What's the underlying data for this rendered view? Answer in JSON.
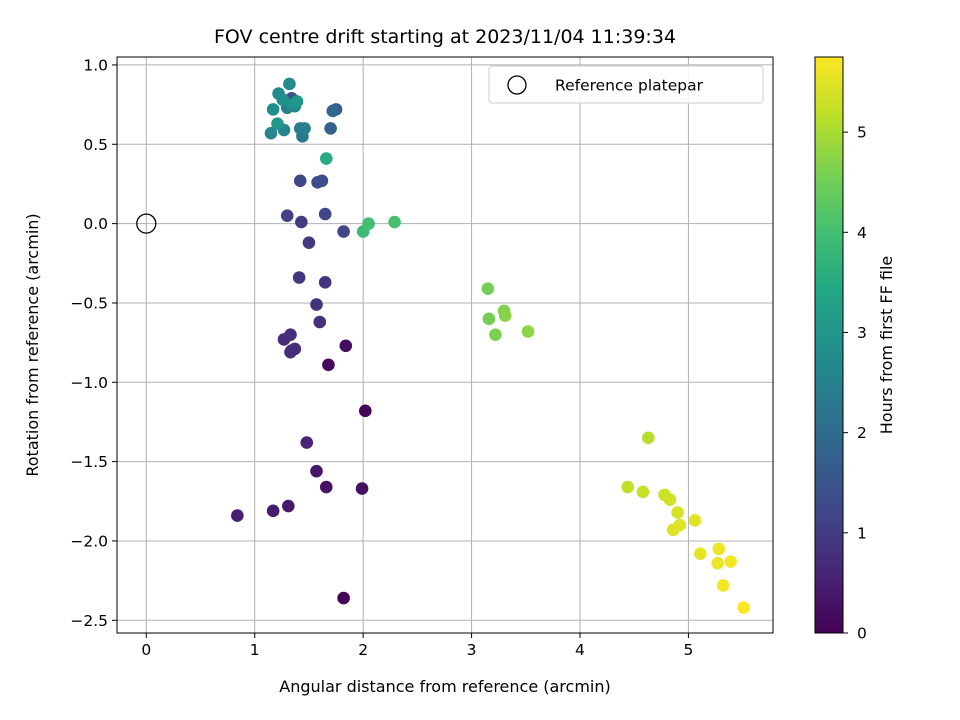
{
  "chart_data": {
    "type": "scatter",
    "title": "FOV centre drift starting at 2023/11/04 11:39:34",
    "xlabel": "Angular distance from reference (arcmin)",
    "ylabel": "Rotation from reference (arcmin)",
    "xlim": [
      -0.27,
      5.78
    ],
    "ylim": [
      -2.58,
      1.05
    ],
    "xticks": [
      0,
      1,
      2,
      3,
      4,
      5
    ],
    "yticks": [
      1.0,
      0.5,
      0.0,
      -0.5,
      -1.0,
      -1.5,
      -2.0,
      -2.5
    ],
    "xtick_labels": [
      "0",
      "1",
      "2",
      "3",
      "4",
      "5"
    ],
    "ytick_labels": [
      "1.0",
      "0.5",
      "0.0",
      "−0.5",
      "−1.0",
      "−1.5",
      "−2.0",
      "−2.5"
    ],
    "grid": true,
    "legend": {
      "placement": "top-right",
      "entries": [
        {
          "label": "Reference platepar",
          "marker": "open-circle"
        }
      ]
    },
    "reference_point": {
      "x": 0,
      "y": 0
    },
    "colorbar": {
      "label": "Hours from first FF file",
      "colormap": "viridis",
      "range": [
        0,
        5.75
      ],
      "ticks": [
        0,
        1,
        2,
        3,
        4,
        5
      ],
      "tick_labels": [
        "0",
        "1",
        "2",
        "3",
        "4",
        "5"
      ]
    },
    "points": [
      {
        "x": 1.82,
        "y": -2.36,
        "t": 0.05
      },
      {
        "x": 2.02,
        "y": -1.18,
        "t": 0.1
      },
      {
        "x": 1.68,
        "y": -0.89,
        "t": 0.15
      },
      {
        "x": 1.84,
        "y": -0.77,
        "t": 0.2
      },
      {
        "x": 1.99,
        "y": -1.67,
        "t": 0.25
      },
      {
        "x": 1.66,
        "y": -1.66,
        "t": 0.3
      },
      {
        "x": 1.57,
        "y": -1.56,
        "t": 0.35
      },
      {
        "x": 1.31,
        "y": -1.78,
        "t": 0.4
      },
      {
        "x": 1.17,
        "y": -1.81,
        "t": 0.45
      },
      {
        "x": 0.84,
        "y": -1.84,
        "t": 0.5
      },
      {
        "x": 1.48,
        "y": -1.38,
        "t": 0.6
      },
      {
        "x": 1.34,
        "y": -0.8,
        "t": 0.65
      },
      {
        "x": 1.27,
        "y": -0.73,
        "t": 0.7
      },
      {
        "x": 1.37,
        "y": -0.79,
        "t": 0.72
      },
      {
        "x": 1.33,
        "y": -0.81,
        "t": 0.75
      },
      {
        "x": 1.33,
        "y": -0.7,
        "t": 0.78
      },
      {
        "x": 1.6,
        "y": -0.62,
        "t": 0.8
      },
      {
        "x": 1.57,
        "y": -0.51,
        "t": 0.82
      },
      {
        "x": 1.65,
        "y": -0.37,
        "t": 0.85
      },
      {
        "x": 1.41,
        "y": -0.34,
        "t": 0.9
      },
      {
        "x": 1.5,
        "y": -0.12,
        "t": 0.95
      },
      {
        "x": 1.43,
        "y": 0.01,
        "t": 1.0
      },
      {
        "x": 1.3,
        "y": 0.05,
        "t": 1.1
      },
      {
        "x": 1.65,
        "y": 0.06,
        "t": 1.15
      },
      {
        "x": 1.82,
        "y": -0.05,
        "t": 1.2
      },
      {
        "x": 1.42,
        "y": 0.27,
        "t": 1.25
      },
      {
        "x": 1.58,
        "y": 0.26,
        "t": 1.3
      },
      {
        "x": 1.62,
        "y": 0.27,
        "t": 1.35
      },
      {
        "x": 1.34,
        "y": 0.79,
        "t": 1.45
      },
      {
        "x": 1.75,
        "y": 0.72,
        "t": 1.6
      },
      {
        "x": 1.7,
        "y": 0.6,
        "t": 1.8
      },
      {
        "x": 1.72,
        "y": 0.71,
        "t": 1.9
      },
      {
        "x": 1.44,
        "y": 0.55,
        "t": 2.3
      },
      {
        "x": 1.42,
        "y": 0.6,
        "t": 2.4
      },
      {
        "x": 1.46,
        "y": 0.6,
        "t": 2.45
      },
      {
        "x": 1.3,
        "y": 0.73,
        "t": 2.5
      },
      {
        "x": 1.37,
        "y": 0.74,
        "t": 2.55
      },
      {
        "x": 1.27,
        "y": 0.59,
        "t": 2.6
      },
      {
        "x": 1.15,
        "y": 0.57,
        "t": 2.65
      },
      {
        "x": 1.22,
        "y": 0.82,
        "t": 2.7
      },
      {
        "x": 1.32,
        "y": 0.88,
        "t": 2.75
      },
      {
        "x": 1.17,
        "y": 0.72,
        "t": 2.8
      },
      {
        "x": 1.26,
        "y": 0.78,
        "t": 2.85
      },
      {
        "x": 1.35,
        "y": 0.75,
        "t": 2.9
      },
      {
        "x": 1.39,
        "y": 0.77,
        "t": 2.95
      },
      {
        "x": 1.21,
        "y": 0.63,
        "t": 3.0
      },
      {
        "x": 1.66,
        "y": 0.41,
        "t": 3.5
      },
      {
        "x": 2.0,
        "y": -0.05,
        "t": 3.9
      },
      {
        "x": 2.05,
        "y": 0.0,
        "t": 4.0
      },
      {
        "x": 2.29,
        "y": 0.01,
        "t": 4.05
      },
      {
        "x": 3.15,
        "y": -0.41,
        "t": 4.5
      },
      {
        "x": 3.16,
        "y": -0.6,
        "t": 4.55
      },
      {
        "x": 3.22,
        "y": -0.7,
        "t": 4.6
      },
      {
        "x": 3.3,
        "y": -0.55,
        "t": 4.65
      },
      {
        "x": 3.31,
        "y": -0.58,
        "t": 4.7
      },
      {
        "x": 3.52,
        "y": -0.68,
        "t": 4.75
      },
      {
        "x": 4.63,
        "y": -1.35,
        "t": 5.1
      },
      {
        "x": 4.44,
        "y": -1.66,
        "t": 5.2
      },
      {
        "x": 4.58,
        "y": -1.69,
        "t": 5.25
      },
      {
        "x": 4.78,
        "y": -1.71,
        "t": 5.3
      },
      {
        "x": 4.83,
        "y": -1.74,
        "t": 5.35
      },
      {
        "x": 4.9,
        "y": -1.82,
        "t": 5.4
      },
      {
        "x": 4.86,
        "y": -1.93,
        "t": 5.45
      },
      {
        "x": 4.92,
        "y": -1.9,
        "t": 5.48
      },
      {
        "x": 5.06,
        "y": -1.87,
        "t": 5.5
      },
      {
        "x": 5.11,
        "y": -2.08,
        "t": 5.55
      },
      {
        "x": 5.28,
        "y": -2.05,
        "t": 5.58
      },
      {
        "x": 5.27,
        "y": -2.14,
        "t": 5.6
      },
      {
        "x": 5.39,
        "y": -2.13,
        "t": 5.65
      },
      {
        "x": 5.32,
        "y": -2.28,
        "t": 5.68
      },
      {
        "x": 5.51,
        "y": -2.42,
        "t": 5.75
      }
    ]
  }
}
